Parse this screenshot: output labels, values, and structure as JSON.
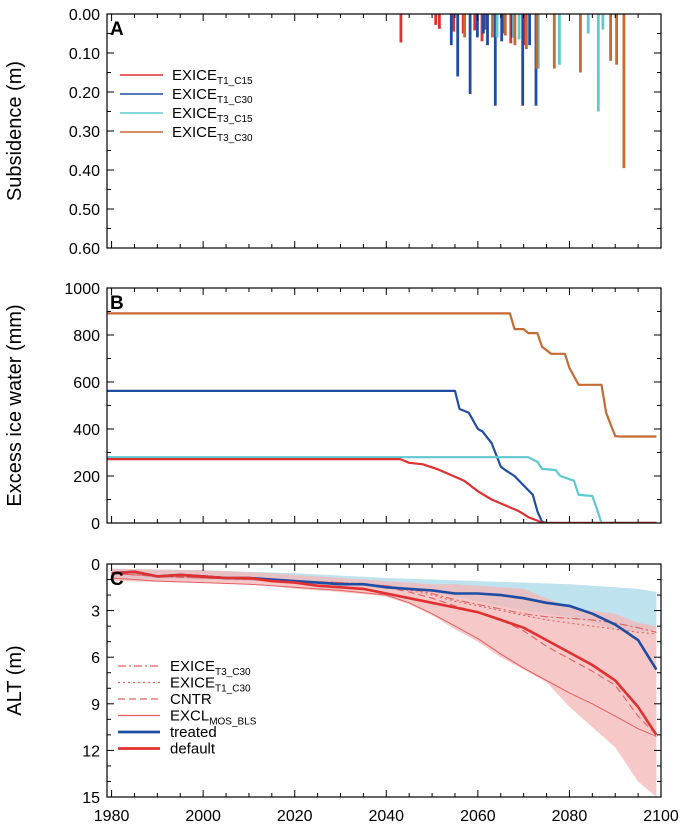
{
  "chart_data": [
    {
      "type": "bar",
      "panel_label": "A",
      "ylabel": "Subsidence (m)",
      "ylim": [
        0.0,
        0.6
      ],
      "y_inverted": true,
      "xlim": [
        1979,
        2100
      ],
      "yticks": [
        "0.00",
        "0.10",
        "0.20",
        "0.30",
        "0.40",
        "0.50",
        "0.60"
      ],
      "legend": [
        {
          "base": "EXICE",
          "sub": "T1_C15",
          "color": "#e03030"
        },
        {
          "base": "EXICE",
          "sub": "T1_C30",
          "color": "#1f4da3"
        },
        {
          "base": "EXICE",
          "sub": "T3_C15",
          "color": "#5fc8d0"
        },
        {
          "base": "EXICE",
          "sub": "T3_C30",
          "color": "#c56a33"
        }
      ],
      "series": [
        {
          "name": "EXICE_T1_C15",
          "color": "#e03030",
          "x": [
            2043.2,
            2050.8,
            2051.6,
            2054.7,
            2056.8,
            2059.3,
            2060.9,
            2061.6,
            2064.1,
            2065.5,
            2067.2,
            2070.1
          ],
          "values": [
            0.073,
            0.028,
            0.038,
            0.045,
            0.05,
            0.042,
            0.07,
            0.04,
            0.06,
            0.05,
            0.075,
            0.08
          ]
        },
        {
          "name": "EXICE_T1_C30",
          "color": "#1f4da3",
          "x": [
            2054.2,
            2055.6,
            2058.3,
            2059.9,
            2061.2,
            2062.1,
            2063.8,
            2065.2,
            2067.5,
            2069.8,
            2071.3,
            2072.7
          ],
          "values": [
            0.08,
            0.16,
            0.205,
            0.06,
            0.05,
            0.08,
            0.235,
            0.07,
            0.06,
            0.235,
            0.08,
            0.235
          ]
        },
        {
          "name": "EXICE_T3_C15",
          "color": "#5fc8d0",
          "x": [
            2064.2,
            2067.8,
            2069.0,
            2073.2,
            2077.8,
            2084.1,
            2086.3,
            2087.3
          ],
          "values": [
            0.06,
            0.06,
            0.065,
            0.14,
            0.13,
            0.05,
            0.25,
            0.04
          ]
        },
        {
          "name": "EXICE_T3_C30",
          "color": "#c56a33",
          "x": [
            2057.1,
            2063.2,
            2066.0,
            2068.1,
            2070.6,
            2072.9,
            2076.7,
            2082.4,
            2089.0,
            2090.3,
            2091.9
          ],
          "values": [
            0.06,
            0.06,
            0.055,
            0.08,
            0.09,
            0.14,
            0.14,
            0.15,
            0.12,
            0.13,
            0.395
          ]
        }
      ]
    },
    {
      "type": "line",
      "panel_label": "B",
      "ylabel": "Excess ice water (mm)",
      "ylim": [
        0,
        1000
      ],
      "xlim": [
        1979,
        2100
      ],
      "yticks": [
        "0",
        "200",
        "400",
        "600",
        "800",
        "1000"
      ],
      "series": [
        {
          "name": "EXICE_T3_C30",
          "color": "#c56a33",
          "x": [
            1979,
            2067,
            2068,
            2070,
            2071,
            2073,
            2074,
            2076,
            2079,
            2080,
            2082,
            2083,
            2087,
            2088,
            2090,
            2091,
            2099
          ],
          "values": [
            892,
            892,
            825,
            825,
            808,
            808,
            750,
            720,
            720,
            660,
            588,
            588,
            588,
            470,
            370,
            368,
            368
          ]
        },
        {
          "name": "EXICE_T1_C30",
          "color": "#1f4da3",
          "x": [
            1979,
            2055,
            2056,
            2058,
            2060,
            2061,
            2063,
            2065,
            2066,
            2068,
            2070,
            2072,
            2073,
            2074,
            2075,
            2099
          ],
          "values": [
            562,
            562,
            485,
            470,
            400,
            390,
            340,
            240,
            225,
            200,
            160,
            120,
            50,
            5,
            0,
            0
          ]
        },
        {
          "name": "EXICE_T3_C15",
          "color": "#5fc8d0",
          "x": [
            1979,
            2066,
            2068,
            2071,
            2073,
            2074,
            2077,
            2078,
            2081,
            2082,
            2085,
            2086,
            2087,
            2099
          ],
          "values": [
            280,
            280,
            280,
            280,
            260,
            230,
            225,
            200,
            180,
            120,
            115,
            60,
            0,
            0
          ]
        },
        {
          "name": "EXICE_T1_C15",
          "color": "#e03030",
          "x": [
            1979,
            2043,
            2045,
            2048,
            2051,
            2054,
            2057,
            2060,
            2063,
            2066,
            2069,
            2071,
            2073,
            2074,
            2099
          ],
          "values": [
            272,
            272,
            256,
            250,
            230,
            205,
            180,
            135,
            100,
            75,
            50,
            25,
            10,
            0,
            0
          ]
        }
      ]
    },
    {
      "type": "line",
      "panel_label": "C",
      "ylabel": "ALT (m)",
      "ylim": [
        0,
        15
      ],
      "y_inverted": true,
      "xlim": [
        1979,
        2100
      ],
      "xticks": [
        "1980",
        "2000",
        "2020",
        "2040",
        "2060",
        "2080",
        "2100"
      ],
      "yticks": [
        "0",
        "3",
        "6",
        "9",
        "12",
        "15"
      ],
      "legend": [
        {
          "base": "EXICE",
          "sub": "T3_C30",
          "style": "dashdot",
          "color": "#e06060"
        },
        {
          "base": "EXICE",
          "sub": "T1_C30",
          "style": "dotted",
          "color": "#e06060"
        },
        {
          "base": "CNTR",
          "sub": "",
          "style": "dashed",
          "color": "#e06060"
        },
        {
          "base": "EXCL",
          "sub": "MOS_BLS",
          "style": "solid-thin",
          "color": "#e06060"
        },
        {
          "base": "treated",
          "sub": "",
          "style": "solid-thick",
          "color": "#1f4da3"
        },
        {
          "base": "default",
          "sub": "",
          "style": "solid-thick",
          "color": "#e03030"
        }
      ],
      "bands": [
        {
          "name": "treated-range",
          "color": "#a8d8e8",
          "x": [
            1980,
            2000,
            2020,
            2040,
            2050,
            2060,
            2070,
            2080,
            2085,
            2090,
            2095,
            2099
          ],
          "low": [
            0.3,
            0.4,
            0.6,
            0.9,
            1.0,
            1.1,
            1.2,
            1.3,
            1.4,
            1.5,
            1.6,
            1.8
          ],
          "high": [
            1.0,
            1.0,
            1.2,
            1.6,
            1.8,
            2.4,
            3.0,
            3.4,
            3.8,
            4.2,
            4.4,
            4.2
          ]
        },
        {
          "name": "default-range",
          "color": "#f4b6b6",
          "x": [
            1980,
            2000,
            2015,
            2020,
            2030,
            2040,
            2045,
            2050,
            2055,
            2060,
            2065,
            2070,
            2075,
            2080,
            2085,
            2090,
            2095,
            2099
          ],
          "low": [
            0.3,
            0.4,
            0.6,
            0.7,
            0.9,
            1.1,
            1.2,
            1.3,
            1.3,
            1.4,
            1.5,
            1.6,
            2.2,
            2.8,
            3.0,
            3.2,
            3.8,
            4.0
          ],
          "high": [
            1.1,
            1.2,
            1.4,
            1.6,
            1.8,
            2.1,
            2.6,
            3.3,
            4.2,
            5.0,
            6.0,
            6.8,
            7.6,
            9.2,
            10.5,
            11.8,
            14.0,
            15.0
          ]
        }
      ],
      "series": [
        {
          "name": "EXCL_MOS_BLS",
          "color": "#e06060",
          "dash": "",
          "width": 1.0,
          "x": [
            1980,
            1990,
            2000,
            2010,
            2020,
            2030,
            2040,
            2045,
            2050,
            2055,
            2060,
            2065,
            2070,
            2075,
            2080,
            2085,
            2090,
            2095,
            2099
          ],
          "values": [
            0.9,
            1.1,
            1.2,
            1.3,
            1.5,
            1.7,
            2.0,
            2.5,
            3.2,
            4.0,
            4.8,
            5.8,
            6.7,
            7.5,
            8.3,
            9.0,
            9.8,
            10.6,
            11.1
          ]
        },
        {
          "name": "CNTR",
          "color": "#e06060",
          "dash": "7,4",
          "width": 1.1,
          "x": [
            1980,
            1990,
            2000,
            2010,
            2020,
            2030,
            2040,
            2045,
            2050,
            2055,
            2060,
            2065,
            2070,
            2075,
            2080,
            2085,
            2090,
            2095,
            2099
          ],
          "values": [
            0.6,
            0.8,
            0.9,
            1.0,
            1.1,
            1.2,
            1.5,
            1.8,
            2.2,
            2.7,
            3.1,
            3.6,
            4.3,
            5.3,
            6.1,
            6.9,
            7.8,
            9.8,
            11.0
          ]
        },
        {
          "name": "EXICE_T1_C30",
          "color": "#e06060",
          "dash": "2,3",
          "width": 1.1,
          "x": [
            1980,
            1990,
            2000,
            2010,
            2020,
            2030,
            2040,
            2045,
            2050,
            2055,
            2060,
            2065,
            2070,
            2075,
            2080,
            2085,
            2090,
            2095,
            2099
          ],
          "values": [
            0.6,
            0.8,
            0.9,
            1.0,
            1.1,
            1.2,
            1.4,
            1.7,
            2.0,
            2.4,
            2.7,
            3.0,
            3.3,
            3.6,
            3.8,
            4.0,
            4.2,
            4.4,
            4.5
          ]
        },
        {
          "name": "EXICE_T3_C30",
          "color": "#e06060",
          "dash": "8,3,2,3",
          "width": 1.1,
          "x": [
            1980,
            1990,
            2000,
            2010,
            2020,
            2030,
            2040,
            2045,
            2050,
            2055,
            2060,
            2065,
            2070,
            2075,
            2080,
            2085,
            2090,
            2095,
            2099
          ],
          "values": [
            0.6,
            0.8,
            0.9,
            1.0,
            1.1,
            1.2,
            1.4,
            1.6,
            1.9,
            2.3,
            2.6,
            2.9,
            3.2,
            3.4,
            3.5,
            3.6,
            3.8,
            4.1,
            4.4
          ]
        },
        {
          "name": "treated",
          "color": "#1f4da3",
          "dash": "",
          "width": 2.6,
          "x": [
            1980,
            1985,
            1990,
            1995,
            2000,
            2005,
            2010,
            2015,
            2020,
            2025,
            2030,
            2035,
            2040,
            2045,
            2050,
            2055,
            2060,
            2065,
            2070,
            2075,
            2080,
            2085,
            2090,
            2095,
            2099
          ],
          "values": [
            0.6,
            0.5,
            0.8,
            0.7,
            0.8,
            0.9,
            0.9,
            1.0,
            1.1,
            1.2,
            1.3,
            1.3,
            1.5,
            1.6,
            1.7,
            1.9,
            1.9,
            2.0,
            2.2,
            2.5,
            2.7,
            3.2,
            3.9,
            4.9,
            6.8
          ]
        },
        {
          "name": "default",
          "color": "#e03030",
          "dash": "",
          "width": 2.6,
          "x": [
            1980,
            1985,
            1990,
            1995,
            2000,
            2005,
            2010,
            2015,
            2020,
            2025,
            2030,
            2035,
            2040,
            2045,
            2050,
            2055,
            2060,
            2065,
            2070,
            2075,
            2080,
            2085,
            2090,
            2095,
            2099
          ],
          "values": [
            0.6,
            0.5,
            0.8,
            0.7,
            0.8,
            0.9,
            0.9,
            1.1,
            1.2,
            1.4,
            1.5,
            1.6,
            1.9,
            2.2,
            2.5,
            2.8,
            3.1,
            3.6,
            4.1,
            4.9,
            5.7,
            6.5,
            7.5,
            9.2,
            11.0
          ]
        }
      ]
    }
  ]
}
